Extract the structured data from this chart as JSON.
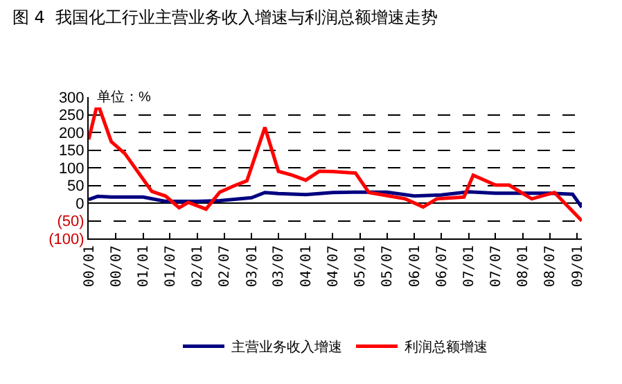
{
  "chart_data": {
    "type": "line",
    "title": "图 4  我国化工行业主营业务收入增速与利润总额增速走势",
    "annotations": [
      "单位：%"
    ],
    "xlim": [
      "2000-01",
      "2009-02"
    ],
    "xticks": [
      {
        "value": "2000-01",
        "label": "00/01"
      },
      {
        "value": "2000-07",
        "label": "00/07"
      },
      {
        "value": "2001-01",
        "label": "01/01"
      },
      {
        "value": "2001-07",
        "label": "01/07"
      },
      {
        "value": "2002-01",
        "label": "02/01"
      },
      {
        "value": "2002-07",
        "label": "02/07"
      },
      {
        "value": "2003-01",
        "label": "03/01"
      },
      {
        "value": "2003-07",
        "label": "03/07"
      },
      {
        "value": "2004-01",
        "label": "04/01"
      },
      {
        "value": "2004-07",
        "label": "04/07"
      },
      {
        "value": "2005-01",
        "label": "05/01"
      },
      {
        "value": "2005-07",
        "label": "05/07"
      },
      {
        "value": "2006-01",
        "label": "06/01"
      },
      {
        "value": "2006-07",
        "label": "06/07"
      },
      {
        "value": "2007-01",
        "label": "07/01"
      },
      {
        "value": "2007-07",
        "label": "07/07"
      },
      {
        "value": "2008-01",
        "label": "08/01"
      },
      {
        "value": "2008-07",
        "label": "08/07"
      },
      {
        "value": "2009-01",
        "label": "09/01"
      }
    ],
    "ylim": [
      -100,
      300
    ],
    "yticks": [
      {
        "value": -100,
        "label": "(100)"
      },
      {
        "value": -50,
        "label": "(50)"
      },
      0,
      50,
      100,
      150,
      200,
      250,
      300
    ],
    "grid": "y",
    "legend": "bottom",
    "line_style": "solid",
    "marker": "none",
    "series": [
      {
        "name": "主营业务收入增速",
        "color": "#000080",
        "x": [
          "2000-01",
          "2000-03",
          "2000-06",
          "2001-01",
          "2001-06",
          "2002-01",
          "2002-06",
          "2003-01",
          "2003-04",
          "2003-07",
          "2004-01",
          "2004-07",
          "2005-01",
          "2005-07",
          "2006-01",
          "2006-07",
          "2007-01",
          "2007-07",
          "2008-01",
          "2008-07",
          "2008-12",
          "2009-02"
        ],
        "values": [
          10,
          19,
          17,
          17,
          5,
          5,
          7,
          15,
          30,
          27,
          24,
          30,
          31,
          31,
          20,
          23,
          32,
          28,
          28,
          28,
          25,
          -12
        ]
      },
      {
        "name": "利润总额增速",
        "color": "#ff0000",
        "x": [
          "2000-01",
          "2000-03",
          "2000-06",
          "2000-09",
          "2001-03",
          "2001-06",
          "2001-09",
          "2001-11",
          "2002-03",
          "2002-06",
          "2002-09",
          "2002-12",
          "2003-04",
          "2003-07",
          "2003-10",
          "2004-01",
          "2004-04",
          "2004-07",
          "2004-12",
          "2005-03",
          "2005-07",
          "2005-11",
          "2006-03",
          "2006-06",
          "2006-12",
          "2007-02",
          "2007-07",
          "2007-10",
          "2008-03",
          "2008-08",
          "2009-02"
        ],
        "values": [
          180,
          283,
          174,
          140,
          33,
          20,
          -13,
          2,
          -17,
          31,
          48,
          63,
          214,
          90,
          79,
          65,
          90,
          89,
          85,
          30,
          21,
          12,
          -11,
          12,
          17,
          79,
          51,
          51,
          12,
          30,
          -50
        ]
      }
    ]
  }
}
